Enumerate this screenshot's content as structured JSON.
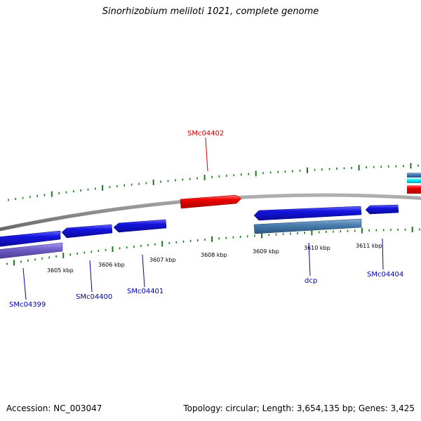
{
  "title": "Sinorhizobium meliloti 1021, complete genome",
  "footer": {
    "accession": "Accession: NC_003047",
    "info": "Topology: circular; Length: 3,654,135 bp; Genes: 3,425"
  },
  "scale_labels": [
    "3605 kbp",
    "3606 kbp",
    "3607 kbp",
    "3608 kbp",
    "3609 kbp",
    "3610 kbp",
    "3611 kbp"
  ],
  "gene_labels": {
    "smc04402": "SMc04402",
    "smc04399": "SMc04399",
    "smc04400": "SMc04400",
    "smc04401": "SMc04401",
    "dcp": "dcp",
    "smc04404": "SMc04404"
  },
  "colors": {
    "forward_gene": "#ee0000",
    "reverse_gene": "#1111dd",
    "rna_feature": "#4a7fb0",
    "purple_feature": "#7060c8",
    "cyan_feature": "#00e0f0",
    "backbone": "#8a8a8a",
    "ticks": "#1a7a1a",
    "label_red": "#cc0000",
    "label_blue": "#0000aa"
  }
}
